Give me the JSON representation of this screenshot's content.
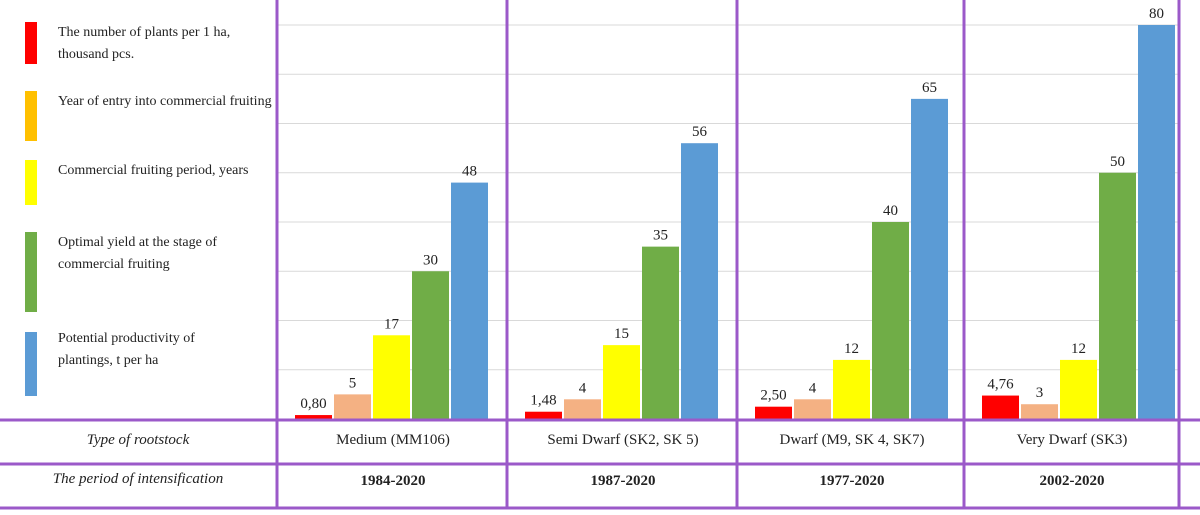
{
  "chart_data": {
    "type": "bar",
    "categories": [
      "Medium (MM106)",
      "Semi Dwarf (SK2, SK 5)",
      "Dwarf (M9, SK 4, SK7)",
      "Very Dwarf (SK3)"
    ],
    "series": [
      {
        "name": "The number of plants per 1 ha, thousand pcs.",
        "values": [
          0.8,
          1.48,
          2.5,
          4.76
        ],
        "labels": [
          "0,80",
          "1,48",
          "2,50",
          "4,76"
        ],
        "color": "#ff0000"
      },
      {
        "name": "Year of entry into commercial fruiting",
        "values": [
          5,
          4,
          4,
          3
        ],
        "labels": [
          "5",
          "4",
          "4",
          "3"
        ],
        "color": "#f4b183"
      },
      {
        "name": "Commercial fruiting period, years",
        "values": [
          17,
          15,
          12,
          12
        ],
        "labels": [
          "17",
          "15",
          "12",
          "12"
        ],
        "color": "#ffff00"
      },
      {
        "name": "Optimal yield at the stage of commercial fruiting",
        "values": [
          30,
          35,
          40,
          50
        ],
        "labels": [
          "30",
          "35",
          "40",
          "50"
        ],
        "color": "#70ad47"
      },
      {
        "name": "Potential productivity of plantings, t per ha",
        "values": [
          48,
          56,
          65,
          80
        ],
        "labels": [
          "48",
          "56",
          "65",
          "80"
        ],
        "color": "#5b9bd5"
      }
    ],
    "ylim": [
      0,
      80
    ],
    "gridlines": [
      10,
      20,
      30,
      40,
      50,
      60,
      70,
      80
    ],
    "legend_position": "left",
    "legend_swatch_colors": [
      "#ff0000",
      "#ffc000",
      "#ffff00",
      "#70ad47",
      "#5b9bd5"
    ]
  },
  "legend": {
    "items": [
      "The number of plants per 1 ha, thousand pcs.",
      "Year of entry into commercial fruiting",
      "Commercial fruiting period, years",
      "Optimal yield at the stage of commercial fruiting",
      "Potential productivity of plantings, t per ha"
    ]
  },
  "table": {
    "row1_label": "Type of rootstock",
    "row2_label": "The period of intensification",
    "rootstocks": [
      "Medium (MM106)",
      "Semi Dwarf (SK2, SK 5)",
      "Dwarf (M9, SK 4, SK7)",
      "Very Dwarf (SK3)"
    ],
    "periods": [
      "1984-2020",
      "1987-2020",
      "1977-2020",
      "2002-2020"
    ]
  },
  "colors": {
    "frame": "#9b59c9",
    "grid": "#d9d9d9"
  }
}
